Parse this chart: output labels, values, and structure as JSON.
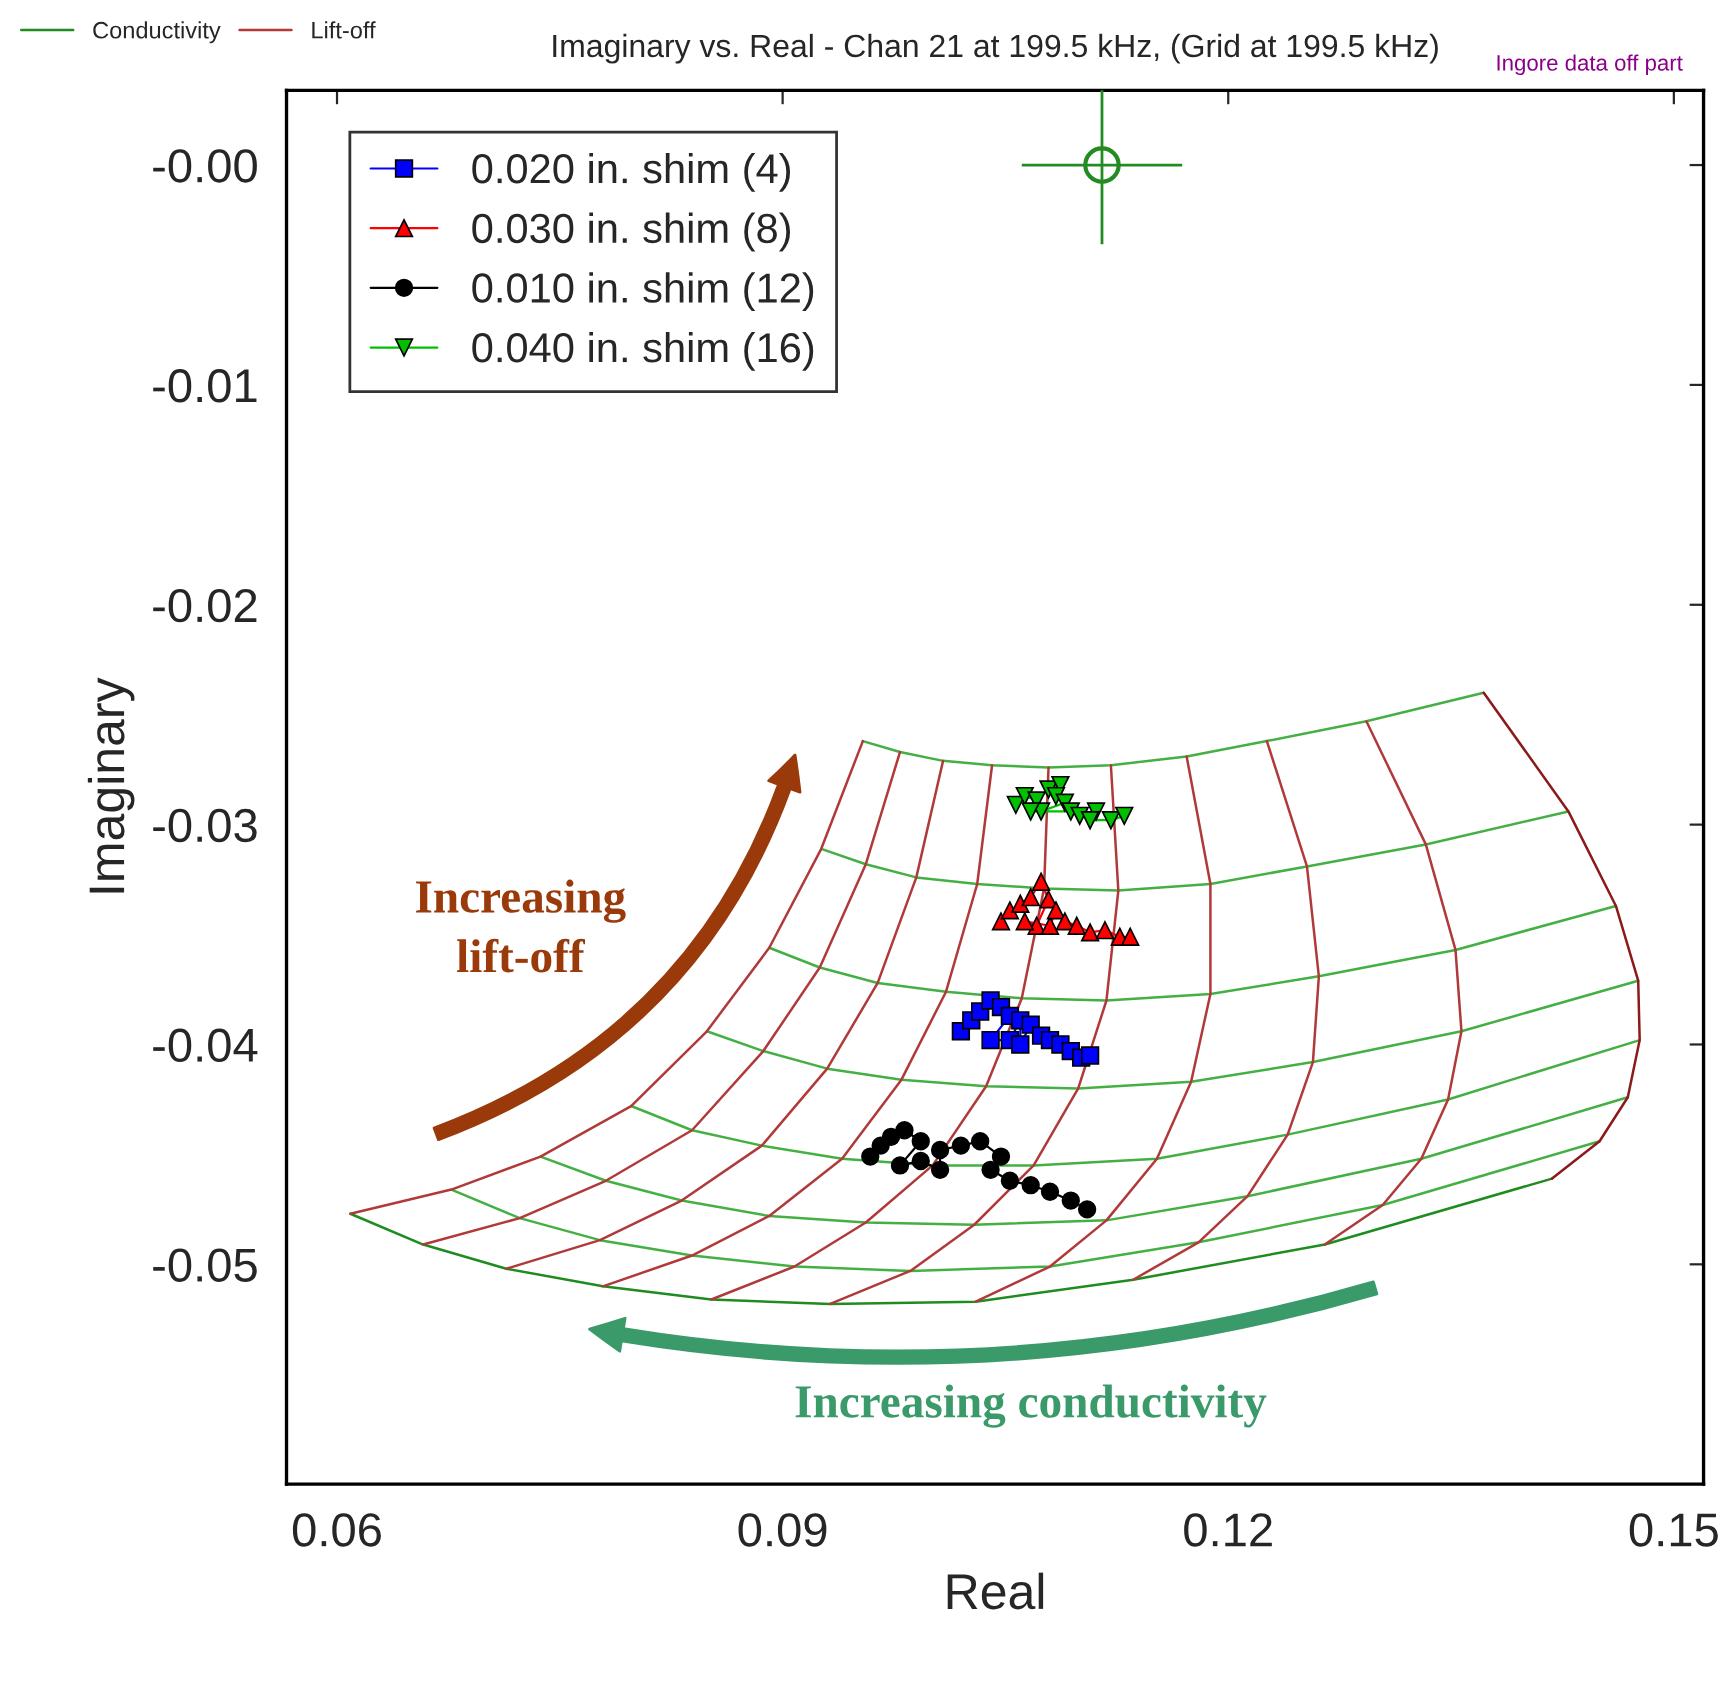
{
  "chart_data": {
    "type": "line",
    "title": "Imaginary vs. Real - Chan 21 at 199.5 kHz, (Grid at 199.5 kHz)",
    "xlabel": "Real",
    "ylabel": "Imaginary",
    "xlim": [
      0.0566,
      0.152
    ],
    "xticks": [
      0.06,
      0.09,
      0.12,
      0.15
    ],
    "ylim": [
      -0.06,
      0.0034
    ],
    "yticks": [
      {
        "value": 0,
        "label": "-0.00"
      },
      -0.01,
      -0.02,
      -0.03,
      -0.04,
      -0.05
    ],
    "grid": false,
    "legend": "top left",
    "annotations": [
      "Increasing\nlift-off",
      "Increasing conductivity",
      "Ingore data off part"
    ],
    "series": [
      {
        "name": "Conductivity",
        "color": "#1e8c1e",
        "x": [
          0.0609,
          0.0658,
          0.0714,
          0.0779,
          0.0852,
          0.0932,
          0.103,
          0.1136,
          0.1265,
          0.1418
        ],
        "values": [
          -0.0477,
          -0.0491,
          -0.0502,
          -0.051,
          -0.0516,
          -0.0518,
          -0.0517,
          -0.0507,
          -0.0491,
          -0.0461
        ]
      },
      {
        "color": "#44b044",
        "x": [
          0.0677,
          0.0723,
          0.0777,
          0.0839,
          0.0908,
          0.0986,
          0.108,
          0.118,
          0.1304,
          0.145
        ],
        "values": [
          -0.0466,
          -0.0479,
          -0.0489,
          -0.0496,
          -0.0501,
          -0.0503,
          -0.0501,
          -0.049,
          -0.0473,
          -0.0444
        ]
      },
      {
        "color": "#44b044",
        "x": [
          0.0737,
          0.0781,
          0.0832,
          0.0891,
          0.0956,
          0.1029,
          0.1118,
          0.1213,
          0.133,
          0.1469
        ],
        "values": [
          -0.0451,
          -0.0462,
          -0.0471,
          -0.0478,
          -0.0481,
          -0.0482,
          -0.048,
          -0.0469,
          -0.0452,
          -0.0424
        ]
      },
      {
        "color": "#44b044",
        "x": [
          0.0798,
          0.0839,
          0.0886,
          0.094,
          0.1001,
          0.1069,
          0.1152,
          0.124,
          0.1348,
          0.1477
        ],
        "values": [
          -0.0428,
          -0.0439,
          -0.0446,
          -0.0452,
          -0.0455,
          -0.0455,
          -0.0452,
          -0.0441,
          -0.0425,
          -0.0398
        ]
      },
      {
        "color": "#44b044",
        "x": [
          0.0849,
          0.0887,
          0.093,
          0.098,
          0.1037,
          0.1099,
          0.1175,
          0.1257,
          0.1357,
          0.1476
        ],
        "values": [
          -0.0394,
          -0.0403,
          -0.0411,
          -0.0416,
          -0.0419,
          -0.042,
          -0.0417,
          -0.0408,
          -0.0394,
          -0.0371
        ]
      },
      {
        "color": "#44b044",
        "x": [
          0.0891,
          0.0925,
          0.0964,
          0.101,
          0.1061,
          0.1118,
          0.1188,
          0.1261,
          0.1353,
          0.1461
        ],
        "values": [
          -0.0356,
          -0.0365,
          -0.0372,
          -0.0376,
          -0.0379,
          -0.038,
          -0.0377,
          -0.0369,
          -0.0357,
          -0.0337
        ]
      },
      {
        "color": "#44b044",
        "x": [
          0.0926,
          0.0956,
          0.099,
          0.1031,
          0.1076,
          0.1126,
          0.1188,
          0.1253,
          0.1333,
          0.1429
        ],
        "values": [
          -0.0311,
          -0.0318,
          -0.0324,
          -0.0327,
          -0.0329,
          -0.033,
          -0.0327,
          -0.0319,
          -0.0309,
          -0.0294
        ]
      },
      {
        "color": "#44b044",
        "x": [
          0.0954,
          0.0979,
          0.1008,
          0.1041,
          0.1079,
          0.1121,
          0.1172,
          0.1226,
          0.1293,
          0.1372
        ],
        "values": [
          -0.0262,
          -0.0267,
          -0.0271,
          -0.0273,
          -0.0274,
          -0.0273,
          -0.0269,
          -0.0262,
          -0.0253,
          -0.024
        ]
      },
      {
        "name": "Lift-off",
        "color": "#b03a3a",
        "x": [
          0.0609,
          0.0677,
          0.0737,
          0.0798,
          0.0849,
          0.0891,
          0.0926,
          0.0954
        ],
        "values": [
          -0.0477,
          -0.0466,
          -0.0451,
          -0.0428,
          -0.0394,
          -0.0356,
          -0.0311,
          -0.0262
        ]
      },
      {
        "color": "#b03a3a",
        "x": [
          0.0658,
          0.0723,
          0.0781,
          0.0839,
          0.0887,
          0.0925,
          0.0956,
          0.0979
        ],
        "values": [
          -0.0491,
          -0.0479,
          -0.0462,
          -0.0439,
          -0.0403,
          -0.0365,
          -0.0318,
          -0.0267
        ]
      },
      {
        "color": "#b03a3a",
        "x": [
          0.0714,
          0.0777,
          0.0832,
          0.0886,
          0.093,
          0.0964,
          0.099,
          0.1008
        ],
        "values": [
          -0.0502,
          -0.0489,
          -0.0471,
          -0.0446,
          -0.0411,
          -0.0372,
          -0.0324,
          -0.0271
        ]
      },
      {
        "color": "#b03a3a",
        "x": [
          0.0779,
          0.0839,
          0.0891,
          0.094,
          0.098,
          0.101,
          0.1031,
          0.1041
        ],
        "values": [
          -0.051,
          -0.0496,
          -0.0478,
          -0.0452,
          -0.0416,
          -0.0376,
          -0.0327,
          -0.0273
        ]
      },
      {
        "color": "#b03a3a",
        "x": [
          0.0852,
          0.0908,
          0.0956,
          0.1001,
          0.1037,
          0.1061,
          0.1076,
          0.1079
        ],
        "values": [
          -0.0516,
          -0.0501,
          -0.0481,
          -0.0455,
          -0.0419,
          -0.0379,
          -0.0329,
          -0.0274
        ]
      },
      {
        "color": "#b03a3a",
        "x": [
          0.0932,
          0.0986,
          0.1029,
          0.1069,
          0.1099,
          0.1118,
          0.1126,
          0.1121
        ],
        "values": [
          -0.0518,
          -0.0503,
          -0.0482,
          -0.0455,
          -0.042,
          -0.038,
          -0.033,
          -0.0273
        ]
      },
      {
        "color": "#b03a3a",
        "x": [
          0.103,
          0.108,
          0.1118,
          0.1152,
          0.1175,
          0.1188,
          0.1188,
          0.1172
        ],
        "values": [
          -0.0517,
          -0.0501,
          -0.048,
          -0.0452,
          -0.0417,
          -0.0377,
          -0.0327,
          -0.0269
        ]
      },
      {
        "color": "#b03a3a",
        "x": [
          0.1136,
          0.118,
          0.1213,
          0.124,
          0.1257,
          0.1261,
          0.1253,
          0.1226
        ],
        "values": [
          -0.0507,
          -0.049,
          -0.0469,
          -0.0441,
          -0.0408,
          -0.0369,
          -0.0319,
          -0.0262
        ]
      },
      {
        "color": "#b03a3a",
        "x": [
          0.1265,
          0.1304,
          0.133,
          0.1348,
          0.1357,
          0.1353,
          0.1333,
          0.1293
        ],
        "values": [
          -0.0491,
          -0.0473,
          -0.0452,
          -0.0425,
          -0.0394,
          -0.0357,
          -0.0309,
          -0.0253
        ]
      },
      {
        "color": "#8b1a1a",
        "x": [
          0.1418,
          0.145,
          0.1469,
          0.1477,
          0.1476,
          0.1461,
          0.1429,
          0.1372
        ],
        "values": [
          -0.0461,
          -0.0444,
          -0.0424,
          -0.0398,
          -0.0371,
          -0.0337,
          -0.0294,
          -0.024
        ]
      },
      {
        "name": "0.020 in. shim (4)",
        "color": "#0000ff",
        "marker": "square",
        "x": [
          0.102,
          0.1027,
          0.1033,
          0.104,
          0.1047,
          0.1053,
          0.104,
          0.1053,
          0.106,
          0.106,
          0.1067,
          0.1074,
          0.108,
          0.1087,
          0.1094,
          0.1101,
          0.1107
        ],
        "values": [
          -0.0394,
          -0.0389,
          -0.0385,
          -0.038,
          -0.0383,
          -0.0387,
          -0.0398,
          -0.0398,
          -0.0389,
          -0.04,
          -0.0391,
          -0.0396,
          -0.0398,
          -0.04,
          -0.0403,
          -0.0406,
          -0.0405
        ]
      },
      {
        "name": "0.030 in. shim (8)",
        "color": "#ff0000",
        "marker": "triangle",
        "x": [
          0.1047,
          0.1053,
          0.106,
          0.1067,
          0.1074,
          0.1079,
          0.1071,
          0.1063,
          0.108,
          0.1084,
          0.109,
          0.1098,
          0.1107,
          0.1117,
          0.1127,
          0.1134
        ],
        "values": [
          -0.0344,
          -0.0339,
          -0.0336,
          -0.0333,
          -0.0326,
          -0.0334,
          -0.0346,
          -0.0344,
          -0.0346,
          -0.0339,
          -0.0344,
          -0.0346,
          -0.0349,
          -0.0348,
          -0.0351,
          -0.0351
        ]
      },
      {
        "name": "0.010 in. shim (12)",
        "color": "#000000",
        "marker": "circle",
        "x": [
          0.0959,
          0.0966,
          0.0973,
          0.0982,
          0.0993,
          0.0979,
          0.0993,
          0.1006,
          0.1006,
          0.102,
          0.1033,
          0.1047,
          0.104,
          0.1053,
          0.1067,
          0.108,
          0.1094,
          0.1105
        ],
        "values": [
          -0.0451,
          -0.0446,
          -0.0442,
          -0.0439,
          -0.0444,
          -0.0455,
          -0.0453,
          -0.0457,
          -0.0448,
          -0.0446,
          -0.0444,
          -0.0451,
          -0.0457,
          -0.0462,
          -0.0464,
          -0.0467,
          -0.0471,
          -0.0475
        ]
      },
      {
        "name": "0.040 in. shim (16)",
        "color": "#00c000",
        "marker": "triangle_down",
        "x": [
          0.1057,
          0.1063,
          0.1071,
          0.1079,
          0.1087,
          0.1084,
          0.109,
          0.1074,
          0.1067,
          0.1094,
          0.11,
          0.1111,
          0.1107,
          0.1121,
          0.113
        ],
        "values": [
          -0.0291,
          -0.0287,
          -0.0289,
          -0.0284,
          -0.0282,
          -0.0287,
          -0.029,
          -0.0294,
          -0.0294,
          -0.0294,
          -0.0296,
          -0.0294,
          -0.0298,
          -0.0298,
          -0.0296
        ]
      },
      {
        "type": "scatter",
        "color": "#228b22",
        "marker": "circle",
        "x": [
          0.1115
        ],
        "values": [
          0.0
        ],
        "errors": [
          0.0036
        ],
        "xerrors": [
          0.0054
        ]
      }
    ]
  }
}
